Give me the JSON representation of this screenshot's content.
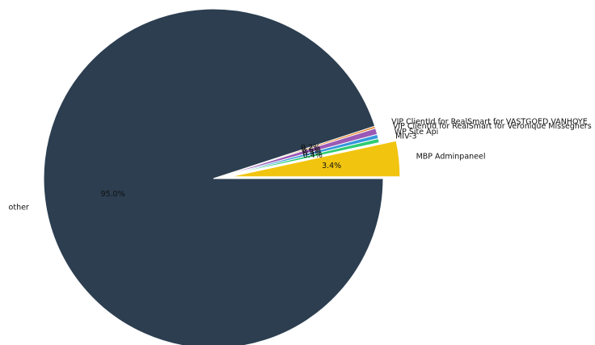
{
  "chart_data": {
    "type": "pie",
    "title": "",
    "slices": [
      {
        "label": "MBP Adminpaneel",
        "value": 3.4,
        "pct_label": "3.4%",
        "color": "#f1c40f",
        "exploded": true
      },
      {
        "label": "MIV-3",
        "value": 0.4,
        "pct_label": "0.4%",
        "color": "#2ecc71",
        "exploded": false
      },
      {
        "label": "WP Site Api",
        "value": 0.4,
        "pct_label": "0.4%",
        "color": "#3498db",
        "exploded": false
      },
      {
        "label": "VIP ClientId for RealSmart for Veronique Misseghers",
        "value": 0.6,
        "pct_label": "0.6%",
        "color": "#9b59b6",
        "exploded": false
      },
      {
        "label": "VIP ClientId for RealSmart for VASTGOED VANHOYE",
        "value": 0.2,
        "pct_label": "0.2%",
        "color": "#e67e22",
        "exploded": false
      },
      {
        "label": "other",
        "value": 95.0,
        "pct_label": "95.0%",
        "color": "#2c3e50",
        "exploded": false
      }
    ],
    "start_angle_deg": 0,
    "direction": "counterclockwise"
  }
}
